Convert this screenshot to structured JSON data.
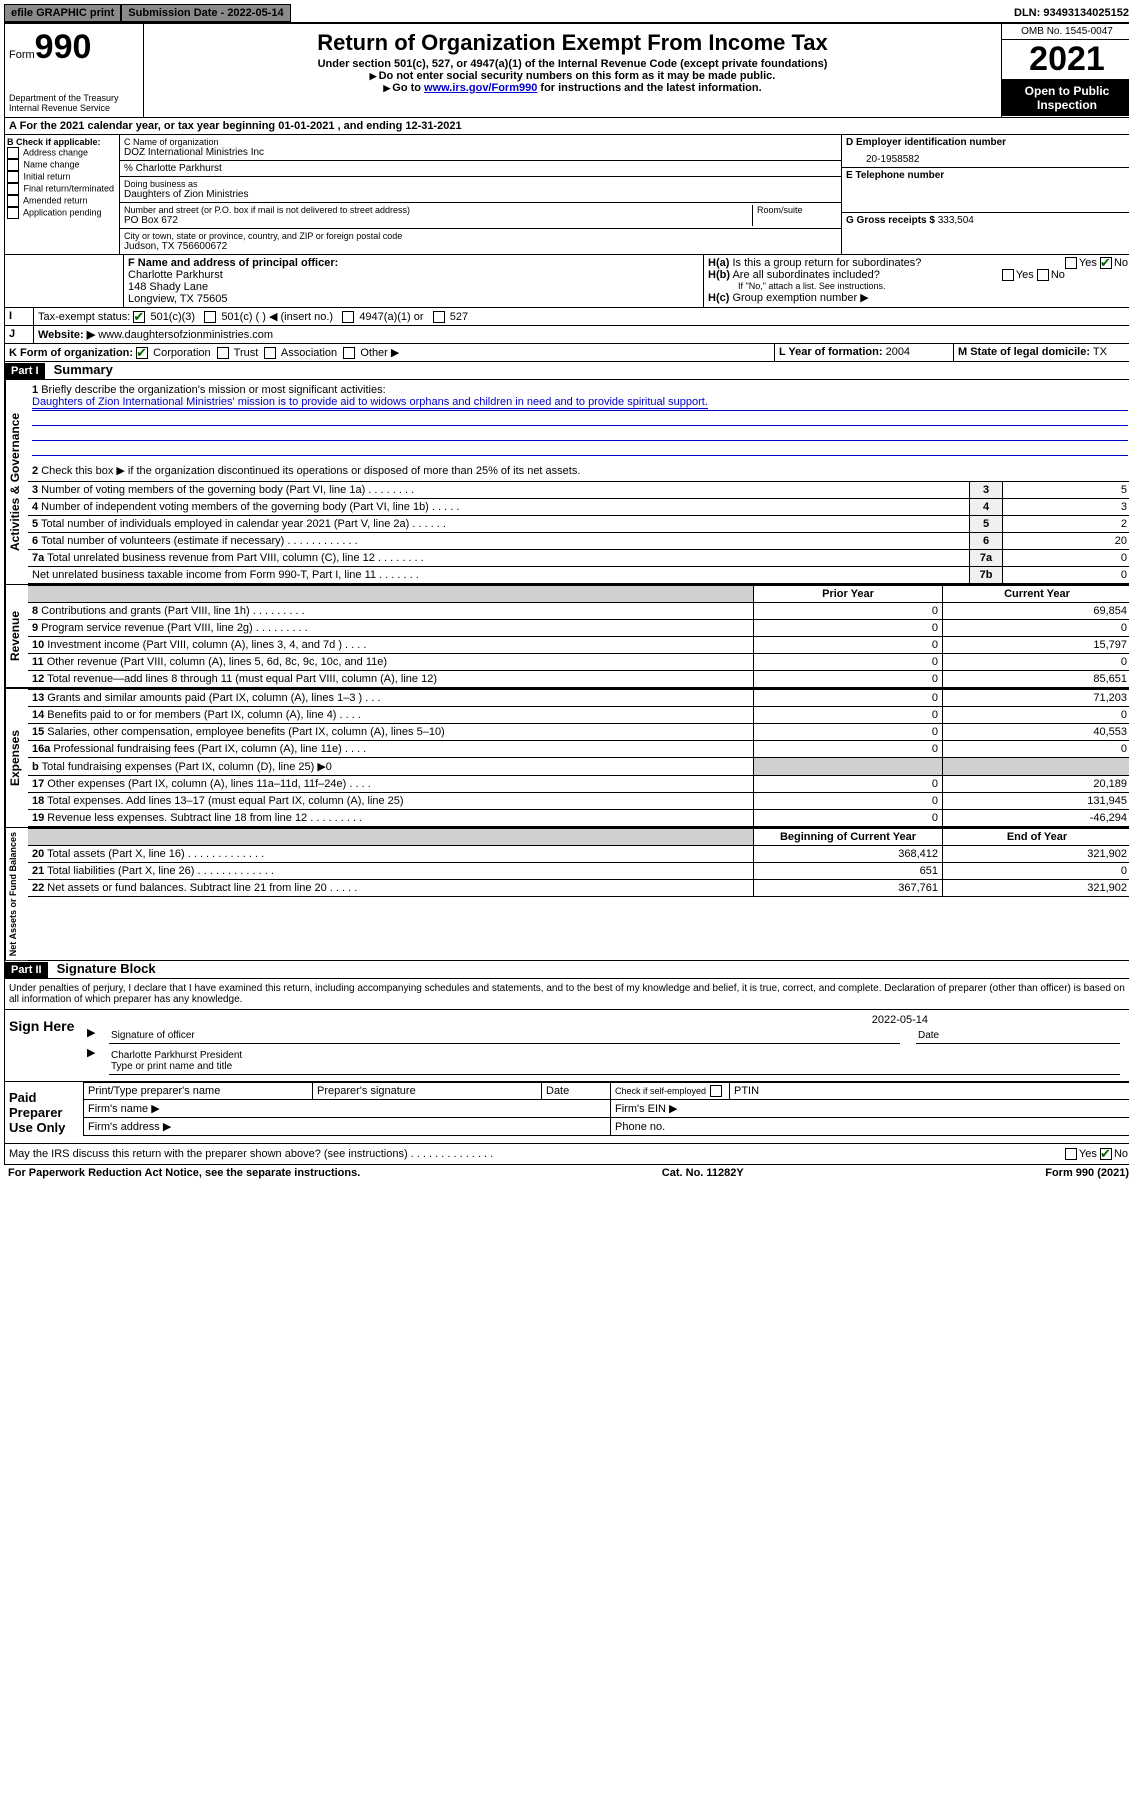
{
  "top": {
    "efile": "efile GRAPHIC print",
    "submission_label": "Submission Date - 2022-05-14",
    "dln": "DLN: 93493134025152"
  },
  "header": {
    "form_prefix": "Form",
    "form_no": "990",
    "dept": "Department of the Treasury Internal Revenue Service",
    "title": "Return of Organization Exempt From Income Tax",
    "subtitle": "Under section 501(c), 527, or 4947(a)(1) of the Internal Revenue Code (except private foundations)",
    "line2": "Do not enter social security numbers on this form as it may be made public.",
    "line3_pre": "Go to ",
    "line3_link": "www.irs.gov/Form990",
    "line3_post": " for instructions and the latest information.",
    "omb": "OMB No. 1545-0047",
    "year": "2021",
    "open": "Open to Public Inspection"
  },
  "line_a": "For the 2021 calendar year, or tax year beginning 01-01-2021   , and ending 12-31-2021",
  "b": {
    "label": "B Check if applicable:",
    "opts": [
      "Address change",
      "Name change",
      "Initial return",
      "Final return/terminated",
      "Amended return",
      "Application pending"
    ]
  },
  "c": {
    "name_label": "C Name of organization",
    "name": "DOZ International Ministries Inc",
    "care_of": "% Charlotte Parkhurst",
    "dba_label": "Doing business as",
    "dba": "Daughters of Zion Ministries",
    "street_label": "Number and street (or P.O. box if mail is not delivered to street address)",
    "room_label": "Room/suite",
    "street": "PO Box 672",
    "city_label": "City or town, state or province, country, and ZIP or foreign postal code",
    "city": "Judson, TX  756600672"
  },
  "d": {
    "label": "D Employer identification number",
    "val": "20-1958582"
  },
  "e": {
    "label": "E Telephone number",
    "val": ""
  },
  "g": {
    "label": "G Gross receipts $",
    "val": "333,504"
  },
  "f": {
    "label": "F Name and address of principal officer:",
    "name": "Charlotte Parkhurst",
    "addr1": "148 Shady Lane",
    "addr2": "Longview, TX  75605"
  },
  "h": {
    "a": "Is this a group return for subordinates?",
    "b": "Are all subordinates included?",
    "b_note": "If \"No,\" attach a list. See instructions.",
    "c": "Group exemption number ▶"
  },
  "i": {
    "label": "Tax-exempt status:",
    "opts": [
      "501(c)(3)",
      "501(c) (   ) ◀ (insert no.)",
      "4947(a)(1) or",
      "527"
    ]
  },
  "j": {
    "label": "Website: ▶",
    "val": "www.daughtersofzionministries.com"
  },
  "k": {
    "label": "K Form of organization:",
    "opts": [
      "Corporation",
      "Trust",
      "Association",
      "Other ▶"
    ]
  },
  "l": {
    "label": "L Year of formation:",
    "val": "2004"
  },
  "m": {
    "label": "M State of legal domicile:",
    "val": "TX"
  },
  "part1": {
    "header": "Part I",
    "title": "Summary",
    "q1": "Briefly describe the organization's mission or most significant activities:",
    "mission": "Daughters of Zion International Ministries' mission is to provide aid to widows orphans and children in need and to provide spiritual support.",
    "q2": "Check this box ▶        if the organization discontinued its operations or disposed of more than 25% of its net assets.",
    "lines_gov": [
      {
        "n": "3",
        "t": "Number of voting members of the governing body (Part VI, line 1a)   .    .    .    .    .    .    .    .",
        "box": "3",
        "v": "5"
      },
      {
        "n": "4",
        "t": "Number of independent voting members of the governing body (Part VI, line 1b)    .    .    .    .    .",
        "box": "4",
        "v": "3"
      },
      {
        "n": "5",
        "t": "Total number of individuals employed in calendar year 2021 (Part V, line 2a)    .    .    .    .    .    .",
        "box": "5",
        "v": "2"
      },
      {
        "n": "6",
        "t": "Total number of volunteers (estimate if necessary)    .    .    .    .    .    .    .    .    .    .    .    .",
        "box": "6",
        "v": "20"
      },
      {
        "n": "7a",
        "t": "Total unrelated business revenue from Part VIII, column (C), line 12   .    .    .    .    .    .    .    .",
        "box": "7a",
        "v": "0"
      },
      {
        "n": "",
        "t": "Net unrelated business taxable income from Form 990-T, Part I, line 11   .    .    .    .    .    .    .",
        "box": "7b",
        "v": "0"
      }
    ],
    "col_prior": "Prior Year",
    "col_current": "Current Year",
    "rev": [
      {
        "n": "8",
        "t": "Contributions and grants (Part VIII, line 1h)    .    .    .    .    .    .    .    .    .",
        "p": "0",
        "c": "69,854"
      },
      {
        "n": "9",
        "t": "Program service revenue (Part VIII, line 2g)    .    .    .    .    .    .    .    .    .",
        "p": "0",
        "c": "0"
      },
      {
        "n": "10",
        "t": "Investment income (Part VIII, column (A), lines 3, 4, and 7d )    .    .    .    .",
        "p": "0",
        "c": "15,797"
      },
      {
        "n": "11",
        "t": "Other revenue (Part VIII, column (A), lines 5, 6d, 8c, 9c, 10c, and 11e)",
        "p": "0",
        "c": "0"
      },
      {
        "n": "12",
        "t": "Total revenue—add lines 8 through 11 (must equal Part VIII, column (A), line 12)",
        "p": "0",
        "c": "85,651"
      }
    ],
    "exp": [
      {
        "n": "13",
        "t": "Grants and similar amounts paid (Part IX, column (A), lines 1–3 )    .    .    .",
        "p": "0",
        "c": "71,203"
      },
      {
        "n": "14",
        "t": "Benefits paid to or for members (Part IX, column (A), line 4)    .    .    .    .",
        "p": "0",
        "c": "0"
      },
      {
        "n": "15",
        "t": "Salaries, other compensation, employee benefits (Part IX, column (A), lines 5–10)",
        "p": "0",
        "c": "40,553"
      },
      {
        "n": "16a",
        "t": "Professional fundraising fees (Part IX, column (A), line 11e)    .    .    .    .",
        "p": "0",
        "c": "0"
      },
      {
        "n": "b",
        "t": "Total fundraising expenses (Part IX, column (D), line 25) ▶0",
        "p": "",
        "c": "",
        "shaded": true
      },
      {
        "n": "17",
        "t": "Other expenses (Part IX, column (A), lines 11a–11d, 11f–24e)    .    .    .    .",
        "p": "0",
        "c": "20,189"
      },
      {
        "n": "18",
        "t": "Total expenses. Add lines 13–17 (must equal Part IX, column (A), line 25)",
        "p": "0",
        "c": "131,945"
      },
      {
        "n": "19",
        "t": "Revenue less expenses. Subtract line 18 from line 12    .    .    .    .    .    .    .    .    .",
        "p": "0",
        "c": "-46,294"
      }
    ],
    "col_begin": "Beginning of Current Year",
    "col_end": "End of Year",
    "net": [
      {
        "n": "20",
        "t": "Total assets (Part X, line 16)    .    .    .    .    .    .    .    .    .    .    .    .    .",
        "p": "368,412",
        "c": "321,902"
      },
      {
        "n": "21",
        "t": "Total liabilities (Part X, line 26)    .    .    .    .    .    .    .    .    .    .    .    .    .",
        "p": "651",
        "c": "0"
      },
      {
        "n": "22",
        "t": "Net assets or fund balances. Subtract line 21 from line 20    .    .    .    .    .",
        "p": "367,761",
        "c": "321,902"
      }
    ]
  },
  "part2": {
    "header": "Part II",
    "title": "Signature Block",
    "decl": "Under penalties of perjury, I declare that I have examined this return, including accompanying schedules and statements, and to the best of my knowledge and belief, it is true, correct, and complete. Declaration of preparer (other than officer) is based on all information of which preparer has any knowledge.",
    "sign_here": "Sign Here",
    "sig_officer": "Signature of officer",
    "sig_date": "2022-05-14",
    "date_label": "Date",
    "officer_name": "Charlotte Parkhurst  President",
    "type_name": "Type or print name and title",
    "paid": "Paid Preparer Use Only",
    "prep_name": "Print/Type preparer's name",
    "prep_sig": "Preparer's signature",
    "prep_date": "Date",
    "check_self": "Check         if self-employed",
    "ptin": "PTIN",
    "firm_name": "Firm's name   ▶",
    "firm_ein": "Firm's EIN ▶",
    "firm_addr": "Firm's address ▶",
    "phone": "Phone no.",
    "may_irs": "May the IRS discuss this return with the preparer shown above? (see instructions)    .    .    .    .    .    .    .    .    .    .    .    .    .    ."
  },
  "footer": {
    "left": "For Paperwork Reduction Act Notice, see the separate instructions.",
    "mid": "Cat. No. 11282Y",
    "right": "Form 990 (2021)"
  }
}
